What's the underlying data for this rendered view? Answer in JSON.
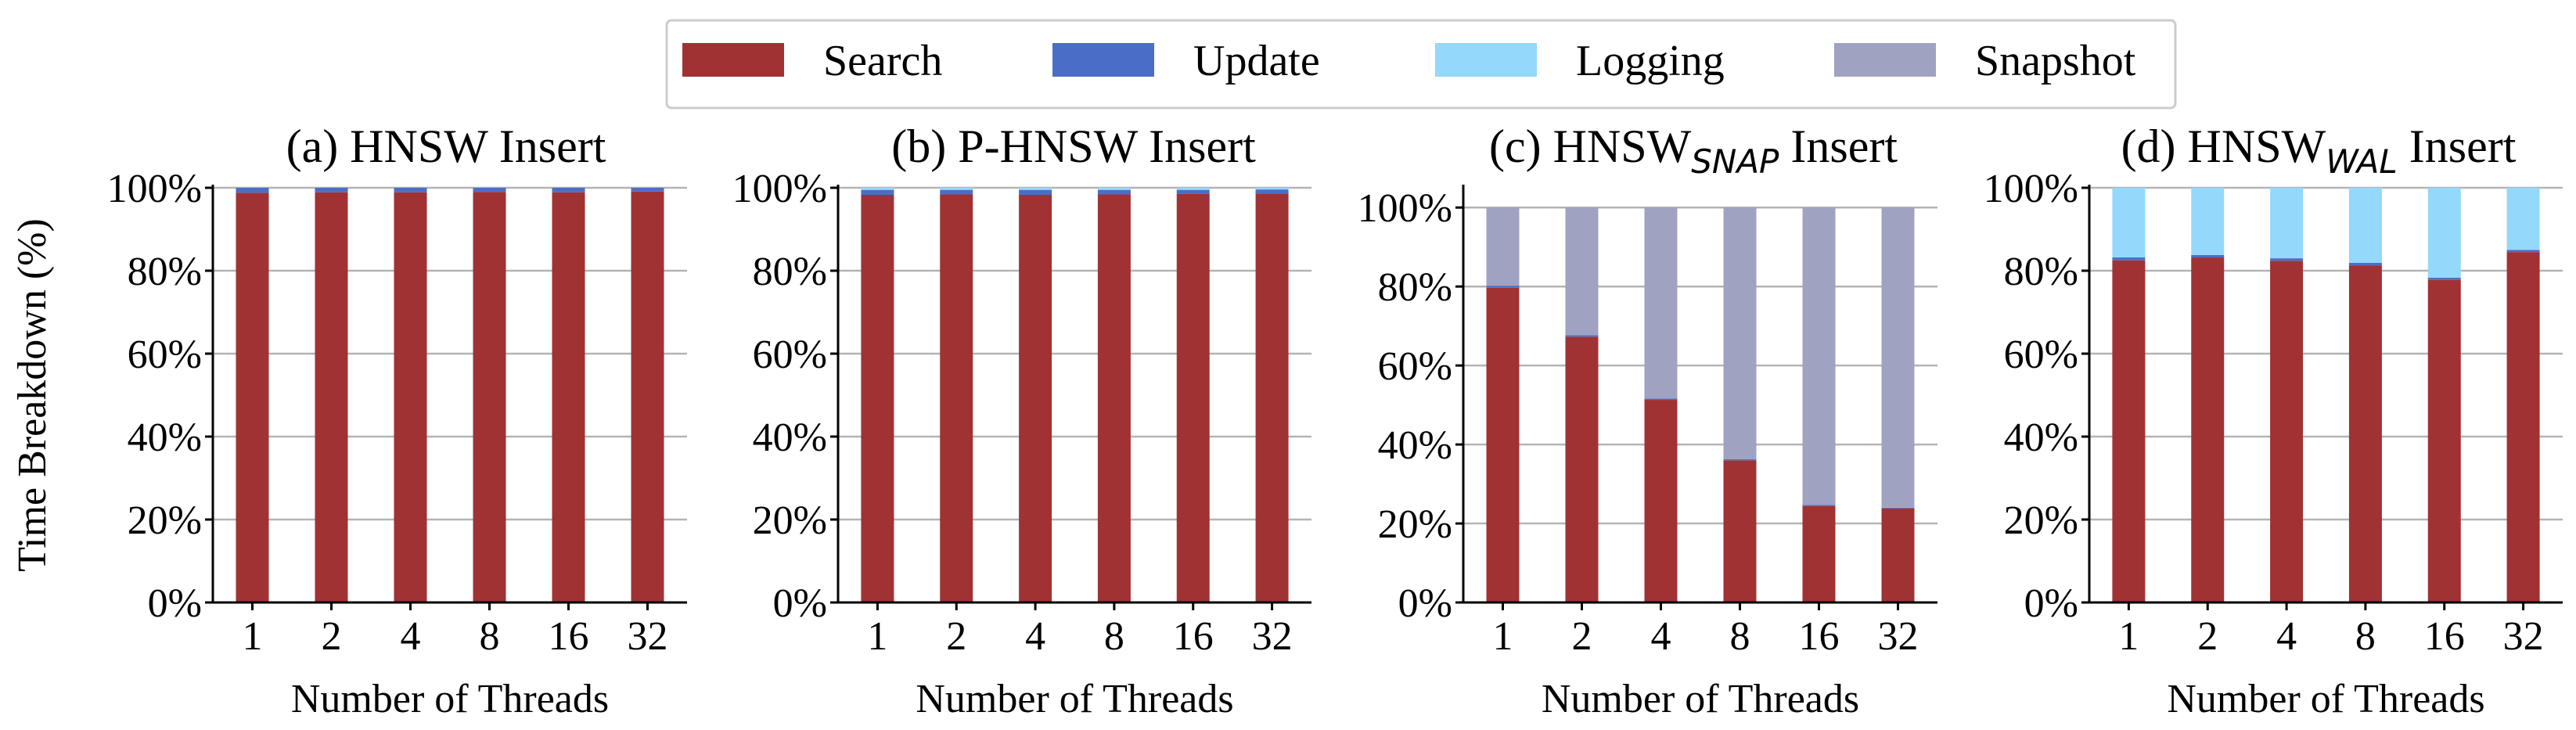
{
  "colors": {
    "Search": "#a03234",
    "Update": "#4a6ec8",
    "Logging": "#94d8fc",
    "Snapshot": "#a0a2c2",
    "grid": "#b4b4b4"
  },
  "legend": [
    "Search",
    "Update",
    "Logging",
    "Snapshot"
  ],
  "ylabel": "Time Breakdown (%)",
  "xlabel": "Number of Threads",
  "chart_data": [
    {
      "type": "bar",
      "stacked": true,
      "title": "(a) HNSW Insert",
      "title_parts": [
        "(a) HNSW",
        "",
        " Insert"
      ],
      "categories": [
        "1",
        "2",
        "4",
        "8",
        "16",
        "32"
      ],
      "xlabel": "Number of Threads",
      "ylabel": "Time Breakdown (%)",
      "ylim": [
        0,
        100
      ],
      "yticks": [
        "0%",
        "20%",
        "40%",
        "60%",
        "80%",
        "100%"
      ],
      "grid": true,
      "series": [
        {
          "name": "Search",
          "values": [
            98.8,
            98.9,
            98.9,
            99.0,
            98.9,
            99.1
          ]
        },
        {
          "name": "Update",
          "values": [
            1.2,
            1.1,
            1.1,
            1.0,
            1.1,
            0.9
          ]
        },
        {
          "name": "Logging",
          "values": [
            0,
            0,
            0,
            0,
            0,
            0
          ]
        },
        {
          "name": "Snapshot",
          "values": [
            0,
            0,
            0,
            0,
            0,
            0
          ]
        }
      ]
    },
    {
      "type": "bar",
      "stacked": true,
      "title": "(b) P-HNSW Insert",
      "title_parts": [
        "(b) P-HNSW",
        "",
        " Insert"
      ],
      "categories": [
        "1",
        "2",
        "4",
        "8",
        "16",
        "32"
      ],
      "xlabel": "Number of Threads",
      "ylabel": "",
      "ylim": [
        0,
        100
      ],
      "yticks": [
        "0%",
        "20%",
        "40%",
        "60%",
        "80%",
        "100%"
      ],
      "grid": true,
      "series": [
        {
          "name": "Search",
          "values": [
            98.3,
            98.4,
            98.3,
            98.4,
            98.5,
            98.6
          ]
        },
        {
          "name": "Update",
          "values": [
            1.2,
            1.1,
            1.2,
            1.1,
            1.0,
            1.0
          ]
        },
        {
          "name": "Logging",
          "values": [
            0.5,
            0.5,
            0.5,
            0.5,
            0.5,
            0.4
          ]
        },
        {
          "name": "Snapshot",
          "values": [
            0,
            0,
            0,
            0,
            0,
            0
          ]
        }
      ]
    },
    {
      "type": "bar",
      "stacked": true,
      "title": "(c) HNSWSNAP Insert",
      "title_parts": [
        "(c) HNSW",
        "SNAP",
        " Insert"
      ],
      "categories": [
        "1",
        "2",
        "4",
        "8",
        "16",
        "32"
      ],
      "xlabel": "Number of Threads",
      "ylabel": "",
      "ylim": [
        0,
        105
      ],
      "yticks": [
        "0%",
        "20%",
        "40%",
        "60%",
        "80%",
        "100%"
      ],
      "grid": true,
      "series": [
        {
          "name": "Search",
          "values": [
            79.7,
            67.3,
            51.3,
            36.0,
            24.5,
            23.8
          ]
        },
        {
          "name": "Update",
          "values": [
            0.5,
            0.4,
            0.3,
            0.3,
            0.2,
            0.2
          ]
        },
        {
          "name": "Logging",
          "values": [
            0,
            0,
            0,
            0,
            0,
            0
          ]
        },
        {
          "name": "Snapshot",
          "values": [
            19.8,
            32.3,
            48.4,
            63.7,
            75.3,
            76.0
          ]
        }
      ]
    },
    {
      "type": "bar",
      "stacked": true,
      "title": "(d) HNSWWAL Insert",
      "title_parts": [
        "(d) HNSW",
        "WAL",
        " Insert"
      ],
      "categories": [
        "1",
        "2",
        "4",
        "8",
        "16",
        "32"
      ],
      "xlabel": "Number of Threads",
      "ylabel": "",
      "ylim": [
        0,
        100
      ],
      "yticks": [
        "0%",
        "20%",
        "40%",
        "60%",
        "80%",
        "100%"
      ],
      "grid": true,
      "series": [
        {
          "name": "Search",
          "values": [
            82.5,
            83.2,
            82.4,
            81.3,
            77.8,
            84.5
          ]
        },
        {
          "name": "Update",
          "values": [
            0.7,
            0.6,
            0.6,
            0.6,
            0.5,
            0.5
          ]
        },
        {
          "name": "Logging",
          "values": [
            16.8,
            16.2,
            17.0,
            18.1,
            21.7,
            15.0
          ]
        },
        {
          "name": "Snapshot",
          "values": [
            0,
            0,
            0,
            0,
            0,
            0
          ]
        }
      ]
    }
  ]
}
